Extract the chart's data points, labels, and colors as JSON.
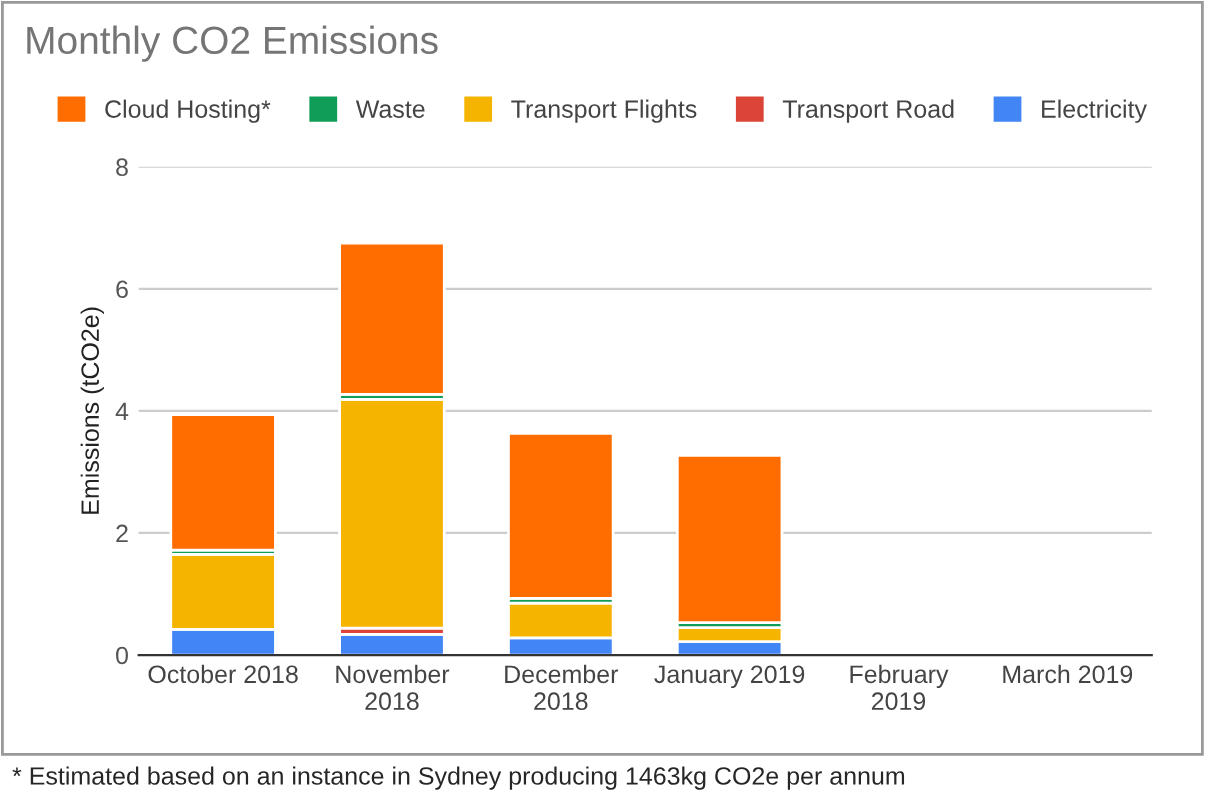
{
  "chart_data": {
    "type": "bar",
    "stacked": true,
    "title": "Monthly CO2 Emissions",
    "ylabel": "Emissions (tCO2e)",
    "categories": [
      "October 2018",
      "November\n2018",
      "December\n2018",
      "January 2019",
      "February\n2019",
      "March 2019"
    ],
    "series": [
      {
        "name": "Electricity",
        "color": "#4285f4",
        "values": [
          0.42,
          0.34,
          0.28,
          0.22,
          null,
          null
        ]
      },
      {
        "name": "Transport Road",
        "color": "#db4437",
        "values": [
          null,
          0.1,
          null,
          null,
          null,
          null
        ]
      },
      {
        "name": "Transport Flights",
        "color": "#f4b400",
        "values": [
          1.23,
          3.75,
          0.57,
          0.23,
          null,
          null
        ]
      },
      {
        "name": "Waste",
        "color": "#0f9d58",
        "values": [
          0.07,
          0.08,
          0.08,
          0.08,
          null,
          null
        ]
      },
      {
        "name": "Cloud Hosting*",
        "color": "#ff6d01",
        "values": [
          2.22,
          2.48,
          2.7,
          2.74,
          null,
          null
        ]
      }
    ],
    "ylim": [
      0,
      8
    ],
    "yticks": [
      0,
      2,
      4,
      6,
      8
    ],
    "grid": "y",
    "legend": "top",
    "annotations": [
      "* Estimated based on an instance in Sydney producing 1463kg CO2e per annum"
    ]
  }
}
